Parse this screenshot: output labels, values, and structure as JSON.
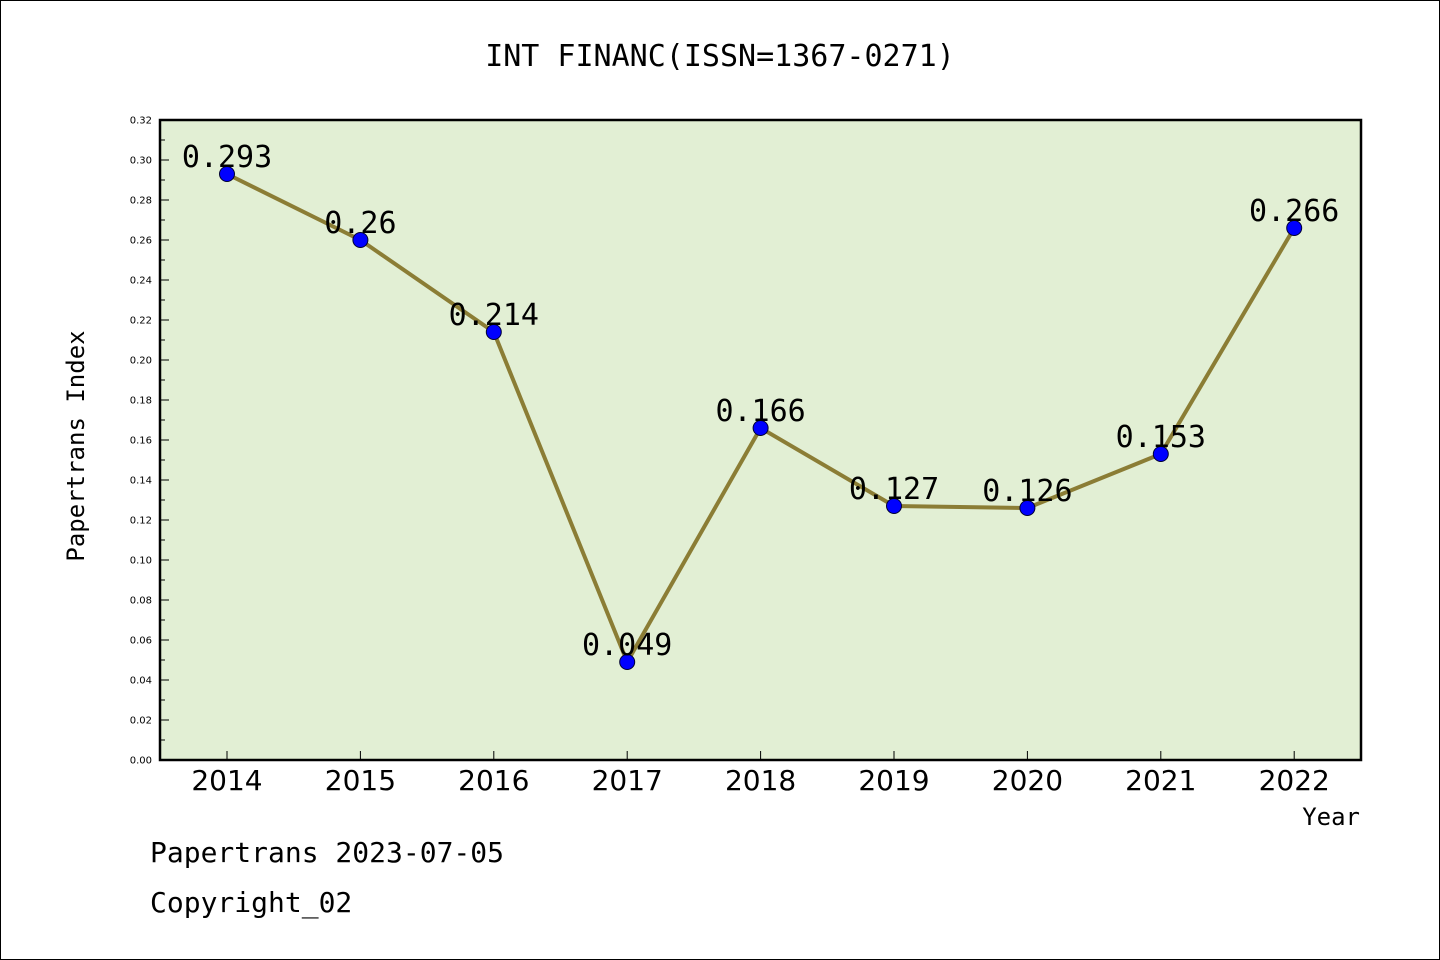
{
  "chart_data": {
    "type": "line",
    "title": "INT FINANC(ISSN=1367-0271)",
    "xlabel": "Year",
    "ylabel": "Papertrans Index",
    "categories": [
      "2014",
      "2015",
      "2016",
      "2017",
      "2018",
      "2019",
      "2020",
      "2021",
      "2022"
    ],
    "values": [
      0.293,
      0.26,
      0.214,
      0.049,
      0.166,
      0.127,
      0.126,
      0.153,
      0.266
    ],
    "data_labels": [
      "0.293",
      "0.26",
      "0.214",
      "0.049",
      "0.166",
      "0.127",
      "0.126",
      "0.153",
      "0.266"
    ],
    "ylim": [
      0,
      0.32
    ],
    "yticks": [
      "0.00",
      "0.02",
      "0.04",
      "0.06",
      "0.08",
      "0.10",
      "0.12",
      "0.14",
      "0.16",
      "0.18",
      "0.20",
      "0.22",
      "0.24",
      "0.26",
      "0.28",
      "0.30",
      "0.32"
    ],
    "grid": false,
    "legend": "none",
    "colors": {
      "plot_background": "#e2efd4",
      "line": "#8b7d35",
      "marker": "#0000ff"
    }
  },
  "footer": {
    "line1": "Papertrans 2023-07-05",
    "line2": "Copyright_02"
  }
}
